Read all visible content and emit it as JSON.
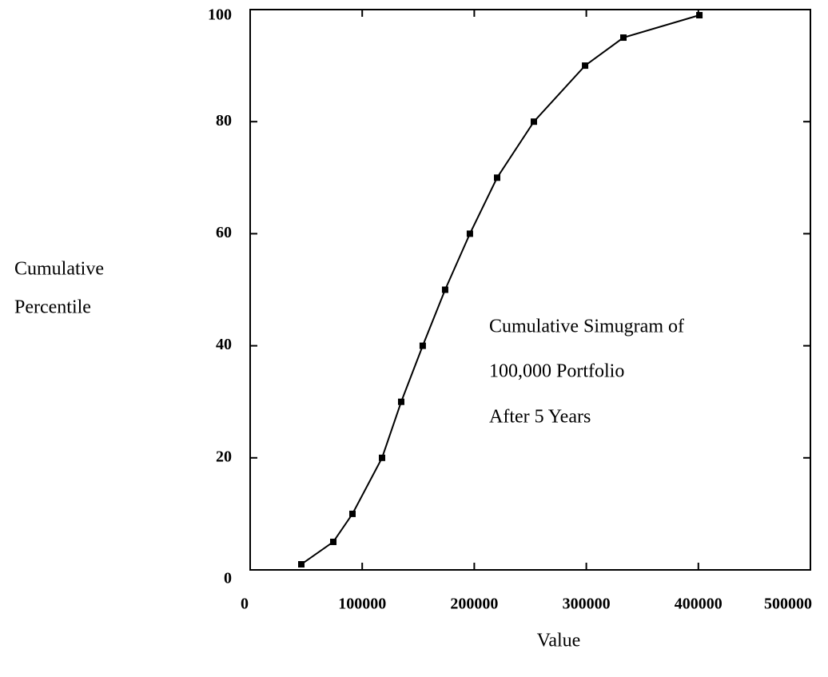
{
  "chart_data": {
    "type": "line",
    "annotation": [
      "Cumulative Simugram of",
      "100,000 Portfolio",
      "After 5 Years"
    ],
    "xlabel": "Value",
    "ylabel": [
      "Cumulative",
      "Percentile"
    ],
    "x": [
      45650,
      74200,
      91300,
      117700,
      134800,
      154000,
      174000,
      196100,
      220400,
      253200,
      298900,
      333100,
      400900
    ],
    "values": [
      1,
      5,
      10,
      20,
      30,
      40,
      50,
      60,
      70,
      80,
      90,
      95,
      99
    ],
    "color": "#000000",
    "markers": true,
    "xlim": [
      0,
      500000
    ],
    "ylim": [
      0,
      100
    ],
    "xticks": [
      0,
      100000,
      200000,
      300000,
      400000,
      500000
    ],
    "yticks": [
      0,
      20,
      40,
      60,
      80,
      100
    ],
    "grid": false
  }
}
